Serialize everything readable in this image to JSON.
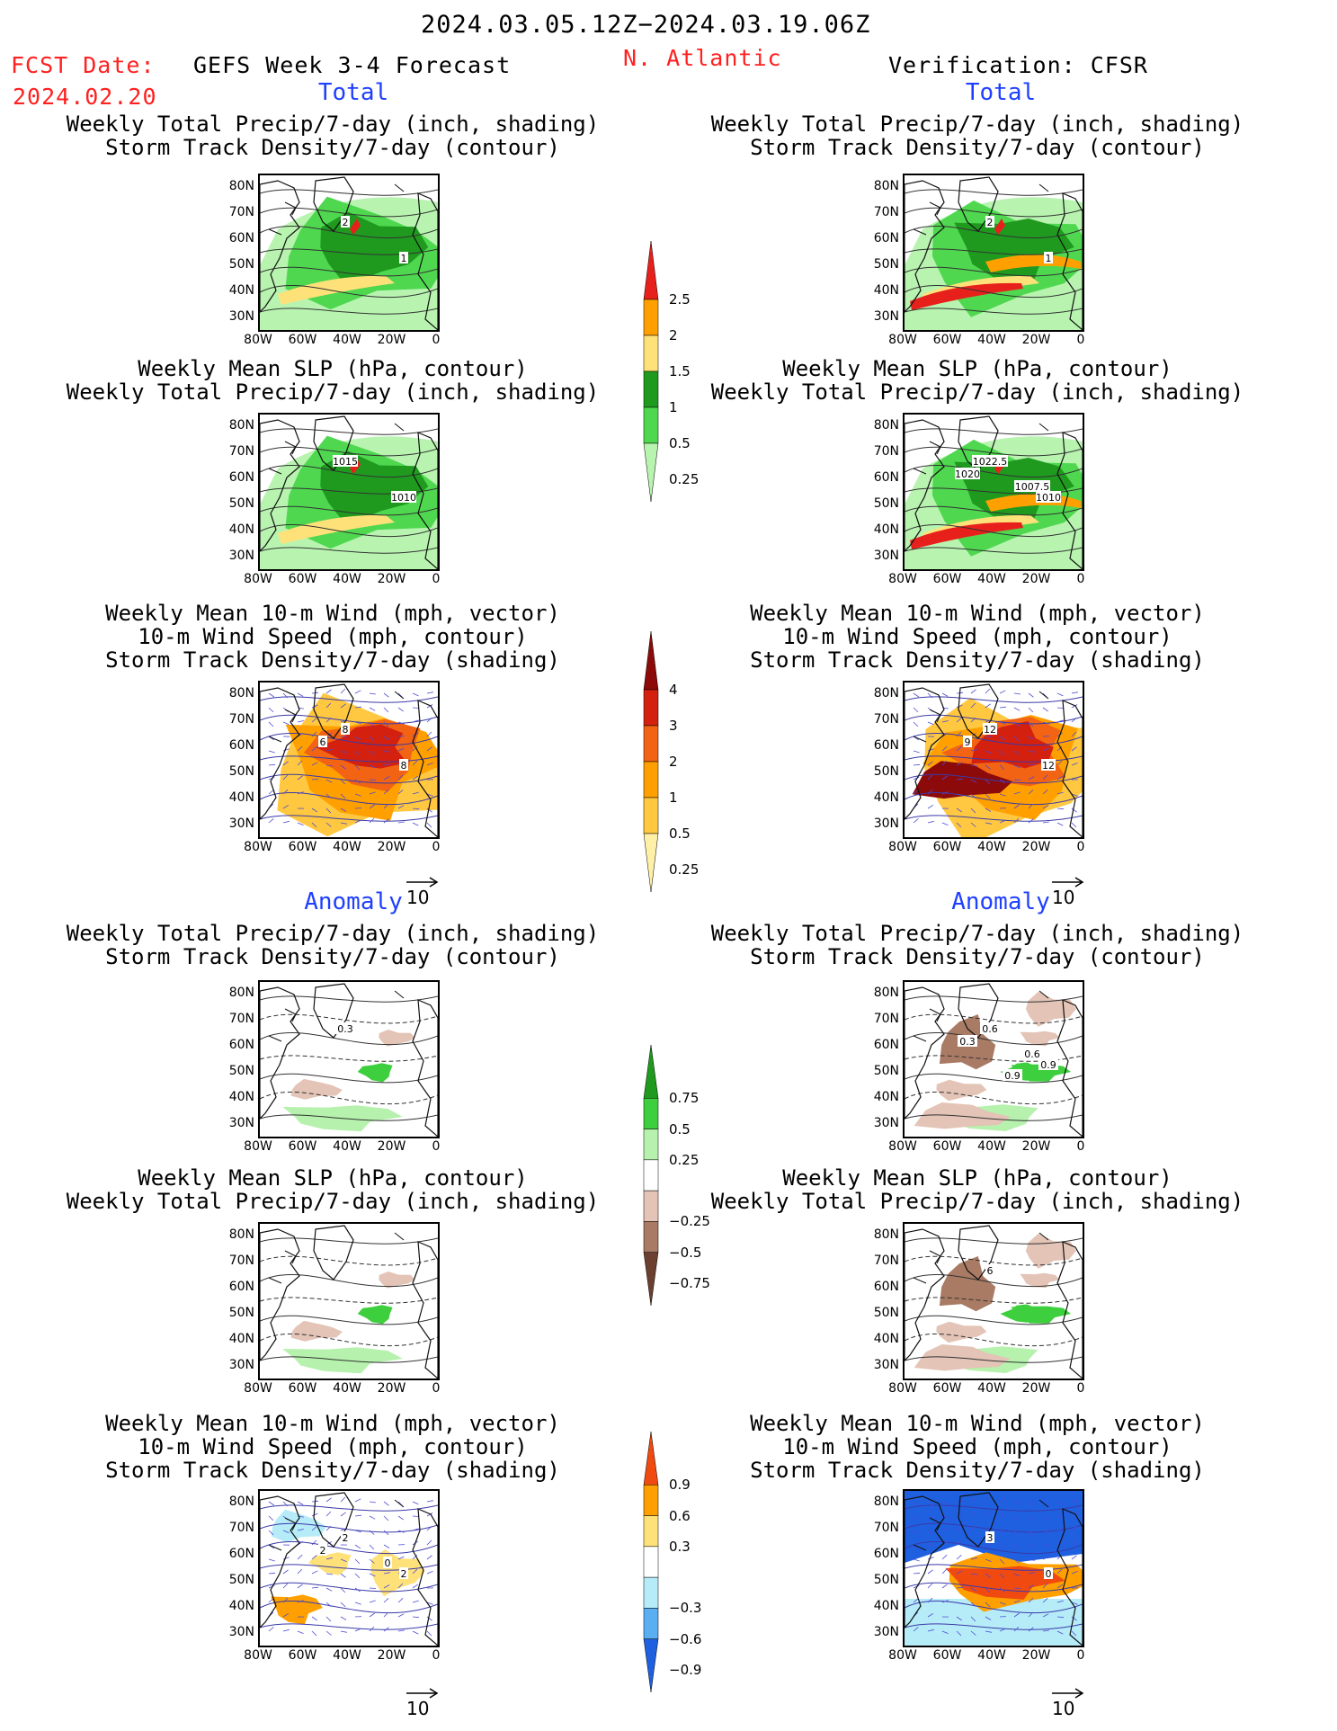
{
  "header": {
    "date_range": "2024.03.05.12Z−2024.03.19.06Z",
    "fcst_label": "FCST Date:",
    "fcst_date": "2024.02.20",
    "model": "GEFS Week 3-4 Forecast",
    "region": "N. Atlantic",
    "verification": "Verification: CFSR"
  },
  "sections": {
    "total_left": "Total",
    "total_right": "Total",
    "anomaly_left": "Anomaly",
    "anomaly_right": "Anomaly"
  },
  "titles": {
    "precip_std": [
      "Weekly Total Precip/7-day (inch, shading)",
      "Storm Track Density/7-day (contour)"
    ],
    "slp_precip": [
      "Weekly Mean SLP (hPa, contour)",
      "Weekly Total Precip/7-day (inch, shading)"
    ],
    "wind": [
      "Weekly Mean 10-m Wind (mph, vector)",
      "10-m Wind Speed (mph, contour)",
      "Storm Track Density/7-day (shading)"
    ]
  },
  "axes": {
    "lat_labels": [
      "80N",
      "70N",
      "60N",
      "50N",
      "40N",
      "30N"
    ],
    "lon_labels": [
      "80W",
      "60W",
      "40W",
      "20W",
      "0"
    ]
  },
  "vector_ref": "10",
  "colorbars": [
    {
      "name": "precip-total",
      "ticks": [
        "2.5",
        "2",
        "1.5",
        "1",
        "0.5",
        "0.25"
      ],
      "colors": [
        "#e8201c",
        "#ffa000",
        "#ffe17a",
        "#1f9a1f",
        "#4fd84f",
        "#b8f4b0"
      ]
    },
    {
      "name": "std-total",
      "ticks": [
        "4",
        "3",
        "2",
        "1",
        "0.5",
        "0.25"
      ],
      "colors": [
        "#8c0a0a",
        "#d3200f",
        "#f26314",
        "#ffa000",
        "#ffc840",
        "#fff0a8"
      ]
    },
    {
      "name": "precip-anom",
      "ticks": [
        "0.75",
        "0.5",
        "0.25",
        "−0.25",
        "−0.5",
        "−0.75"
      ],
      "colors": [
        "#1f9a1f",
        "#3ecf3e",
        "#b6f2ad",
        "#ffffff",
        "#e3c4b6",
        "#a97a64",
        "#6c4030"
      ]
    },
    {
      "name": "std-anom",
      "ticks": [
        "0.9",
        "0.6",
        "0.3",
        "−0.3",
        "−0.6",
        "−0.9"
      ],
      "colors": [
        "#f04a10",
        "#ffa000",
        "#ffe17a",
        "#ffffff",
        "#b6ecf8",
        "#5aaef2",
        "#1f60e0"
      ]
    }
  ],
  "map_labels": {
    "p1L": [
      "2",
      "1"
    ],
    "p1R": [
      "2",
      "1"
    ],
    "p2L": [
      "1015",
      "1010"
    ],
    "p2R": [
      "1022.5",
      "1010",
      "1020",
      "1007.5"
    ],
    "p3L": [
      "8",
      "8",
      "6"
    ],
    "p3R": [
      "12",
      "12",
      "9"
    ],
    "p4L": [
      "0.3"
    ],
    "p4R": [
      "0.6",
      "0.9",
      "0.3",
      "0.6",
      "0.9"
    ],
    "p5L": [],
    "p5R": [
      "6"
    ],
    "p6L": [
      "2",
      "2",
      "2",
      "0"
    ],
    "p6R": [
      "3",
      "0"
    ]
  },
  "colors": {
    "header_red": "#ff2020",
    "section_blue": "#1f3fff"
  }
}
